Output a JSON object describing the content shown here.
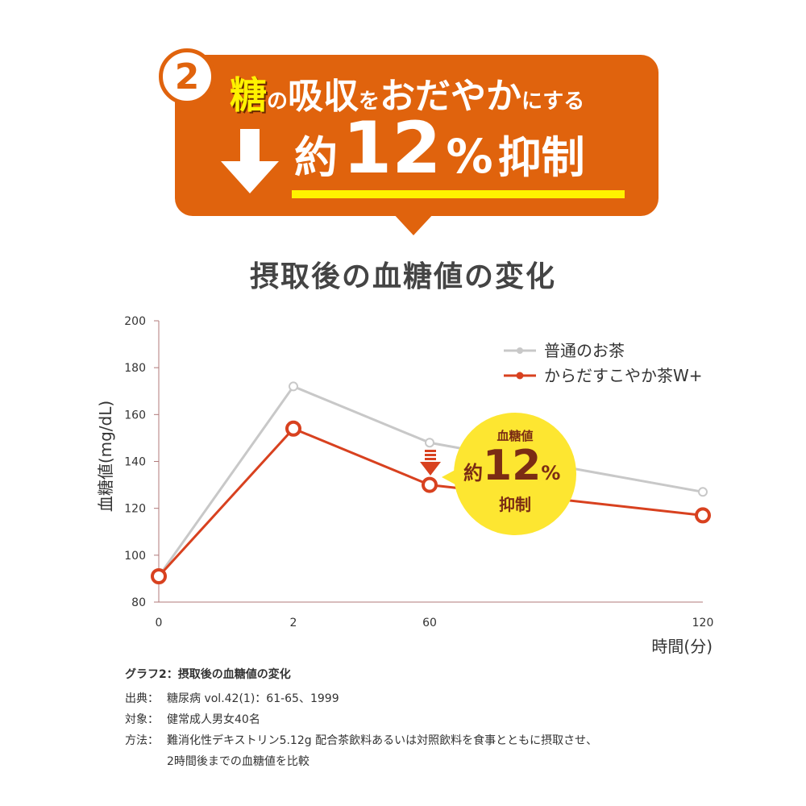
{
  "header": {
    "number": "2",
    "line1_kanji": "糖",
    "line1_no": "の",
    "line1_kyushu": "吸収",
    "line1_wo": "を",
    "line1_odayaka": "おだやか",
    "line1_suffix": "にする",
    "line2_prefix": "約",
    "line2_number": "12",
    "line2_percent": "%",
    "line2_suffix": "抑制"
  },
  "chart_title": "摂取後の血糖値の変化",
  "chart_data": {
    "type": "line",
    "categories": [
      "0",
      "2",
      "60",
      "120"
    ],
    "ylabel": "血糖値(mg/dL)",
    "xlabel": "時間(分)",
    "ylim": [
      80,
      200
    ],
    "yticks": [
      80,
      100,
      120,
      140,
      160,
      180,
      200
    ],
    "series": [
      {
        "name": "普通のお茶",
        "values": [
          91,
          172,
          148,
          127
        ],
        "color": "#c8c8c8"
      },
      {
        "name": "からだすこやか茶W+",
        "values": [
          91,
          154,
          130,
          117
        ],
        "color": "#d8411f"
      }
    ],
    "legend_position": "top-right",
    "annotation": {
      "line1": "血糖値",
      "prefix": "約",
      "number": "12",
      "percent": "%",
      "suffix": "抑制"
    }
  },
  "notes": {
    "title": "グラフ2：摂取後の血糖値の変化",
    "source_label": "出典：",
    "source_text": "糖尿病 vol.42(1)：61-65、1999",
    "subject_label": "対象：",
    "subject_text": "健常成人男女40名",
    "method_label": "方法：",
    "method_text": "難消化性デキストリン5.12g 配合茶飲料あるいは対照飲料を食事とともに摂取させ、",
    "method_text2": "2時間後までの血糖値を比較"
  },
  "colors": {
    "orange": "#e0630d",
    "yellow": "#fff200",
    "red": "#d8411f",
    "gray": "#c8c8c8",
    "callout": "#fde631",
    "brown": "#7b2c14"
  }
}
